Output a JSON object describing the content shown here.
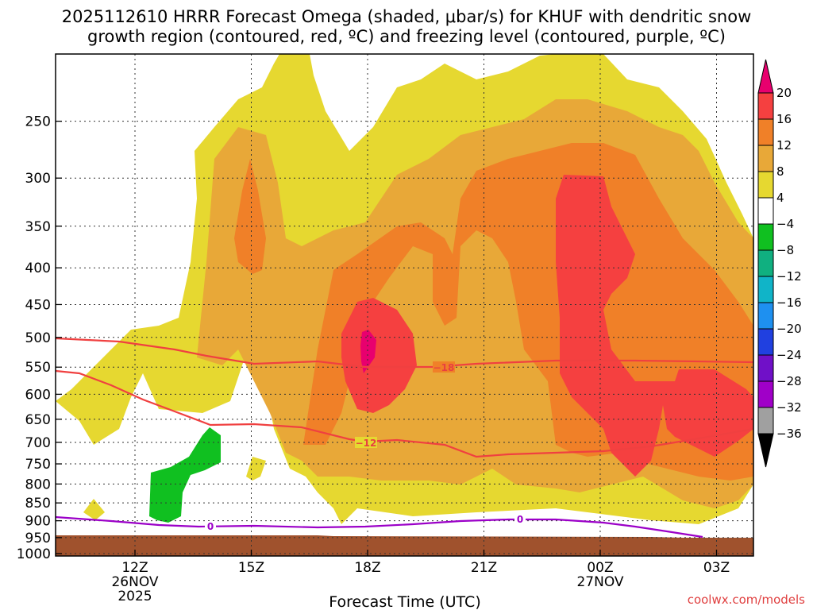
{
  "title": {
    "line1": "2025112610 HRRR Forecast Omega (shaded, μbar/s) for KHUF with dendritic snow",
    "line2": "growth region (contoured, red, ºC) and freezing level (contoured, purple, ºC)"
  },
  "credit": "coolwx.com/models",
  "chart_data": {
    "type": "heatmap",
    "title": "2025112610 HRRR Forecast Omega (shaded, μbar/s) for KHUF with dendritic snow growth region (contoured, red, ºC) and freezing level (contoured, purple, ºC)",
    "xlabel": "Forecast Time (UTC)",
    "ylabel": "",
    "y_scale": "log (pressure, hPa)",
    "ylim": [
      1000,
      200
    ],
    "y_ticks": [
      "250",
      "300",
      "350",
      "400",
      "450",
      "500",
      "550",
      "600",
      "650",
      "700",
      "750",
      "800",
      "850",
      "900",
      "950",
      "1000"
    ],
    "x_ticks": [
      {
        "label": "12Z",
        "sub1": "26NOV",
        "sub2": "2025"
      },
      {
        "label": "15Z",
        "sub1": "",
        "sub2": ""
      },
      {
        "label": "18Z",
        "sub1": "",
        "sub2": ""
      },
      {
        "label": "21Z",
        "sub1": "",
        "sub2": ""
      },
      {
        "label": "00Z",
        "sub1": "27NOV",
        "sub2": ""
      },
      {
        "label": "03Z",
        "sub1": "",
        "sub2": ""
      }
    ],
    "grid": true,
    "colorbar": {
      "placement": "right",
      "levels": [
        "20",
        "16",
        "12",
        "8",
        "4",
        "−4",
        "−8",
        "−12",
        "−16",
        "−20",
        "−24",
        "−28",
        "−32",
        "−36"
      ],
      "colors": [
        "#e8006e",
        "#f54040",
        "#f08028",
        "#e8a838",
        "#e6d830",
        "#ffffff",
        "#10c020",
        "#10b080",
        "#10b4c8",
        "#1e90f0",
        "#2040e0",
        "#7010c8",
        "#a000c8",
        "#a0a0a0",
        "#000000"
      ]
    },
    "contours": [
      {
        "color": "#f04040",
        "labels": [
          "−18",
          "−12"
        ]
      },
      {
        "color": "#9b00c8",
        "labels": [
          "0",
          "0"
        ]
      }
    ],
    "shading_colors": {
      "omega_4_8": "#e6d830",
      "omega_8_12": "#e8a838",
      "omega_12_16": "#f08028",
      "omega_16_20": "#f54040",
      "omega_gt_20": "#e8006e",
      "omega_m8_m4": "#10c020",
      "ground": "#a0522d"
    }
  }
}
